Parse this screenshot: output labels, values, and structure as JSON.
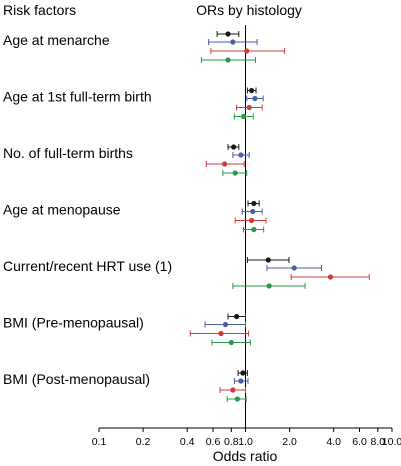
{
  "chart_data": {
    "type": "forest",
    "column_headers": {
      "left": "Risk factors",
      "right": "ORs by histology"
    },
    "xlabel": "Odds ratio",
    "xscale": "log",
    "xlim": [
      0.1,
      10.0
    ],
    "reference_line": 1.0,
    "x_ticks": [
      0.1,
      0.2,
      0.4,
      0.6,
      0.8,
      1.0,
      2.0,
      4.0,
      6.0,
      8.0,
      10.0
    ],
    "x_tick_labels": [
      "0.1",
      "0.2",
      "0.4",
      "0.6",
      "0.8",
      "1.0",
      "2.0",
      "4.0",
      "6.0",
      "8.0",
      "10.0"
    ],
    "series_colors": [
      "#1a1a1a",
      "#4a5ea8",
      "#d23a3a",
      "#2a9a4a"
    ],
    "risk_factors": [
      {
        "label": "Age at menarche",
        "estimates": [
          {
            "or": 0.76,
            "lo": 0.64,
            "hi": 0.9
          },
          {
            "or": 0.82,
            "lo": 0.56,
            "hi": 1.2
          },
          {
            "or": 1.02,
            "lo": 0.58,
            "hi": 1.85
          },
          {
            "or": 0.76,
            "lo": 0.5,
            "hi": 1.17
          }
        ]
      },
      {
        "label": "Age at 1st full-term birth",
        "estimates": [
          {
            "or": 1.1,
            "lo": 1.03,
            "hi": 1.18
          },
          {
            "or": 1.16,
            "lo": 1.02,
            "hi": 1.32
          },
          {
            "or": 1.06,
            "lo": 0.87,
            "hi": 1.3
          },
          {
            "or": 0.97,
            "lo": 0.84,
            "hi": 1.13
          }
        ]
      },
      {
        "label": "No. of full-term births",
        "estimates": [
          {
            "or": 0.83,
            "lo": 0.76,
            "hi": 0.9
          },
          {
            "or": 0.93,
            "lo": 0.82,
            "hi": 1.06
          },
          {
            "or": 0.72,
            "lo": 0.54,
            "hi": 0.98
          },
          {
            "or": 0.85,
            "lo": 0.7,
            "hi": 1.02
          }
        ]
      },
      {
        "label": "Age at menopause",
        "estimates": [
          {
            "or": 1.14,
            "lo": 1.04,
            "hi": 1.24
          },
          {
            "or": 1.12,
            "lo": 0.95,
            "hi": 1.3
          },
          {
            "or": 1.1,
            "lo": 0.85,
            "hi": 1.38
          },
          {
            "or": 1.14,
            "lo": 0.97,
            "hi": 1.33
          }
        ]
      },
      {
        "label": "Current/recent HRT use (1)",
        "estimates": [
          {
            "or": 1.43,
            "lo": 1.03,
            "hi": 1.98
          },
          {
            "or": 2.15,
            "lo": 1.4,
            "hi": 3.3
          },
          {
            "or": 3.8,
            "lo": 2.05,
            "hi": 7.0
          },
          {
            "or": 1.45,
            "lo": 0.82,
            "hi": 2.55
          }
        ]
      },
      {
        "label": "BMI (Pre-menopausal)",
        "estimates": [
          {
            "or": 0.87,
            "lo": 0.76,
            "hi": 1.0
          },
          {
            "or": 0.73,
            "lo": 0.53,
            "hi": 1.0
          },
          {
            "or": 0.68,
            "lo": 0.42,
            "hi": 1.05
          },
          {
            "or": 0.8,
            "lo": 0.59,
            "hi": 1.08
          }
        ]
      },
      {
        "label": "BMI (Post-menopausal)",
        "estimates": [
          {
            "or": 0.96,
            "lo": 0.89,
            "hi": 1.03
          },
          {
            "or": 0.93,
            "lo": 0.84,
            "hi": 1.04
          },
          {
            "or": 0.82,
            "lo": 0.67,
            "hi": 1.0
          },
          {
            "or": 0.88,
            "lo": 0.75,
            "hi": 1.01
          }
        ]
      }
    ]
  }
}
